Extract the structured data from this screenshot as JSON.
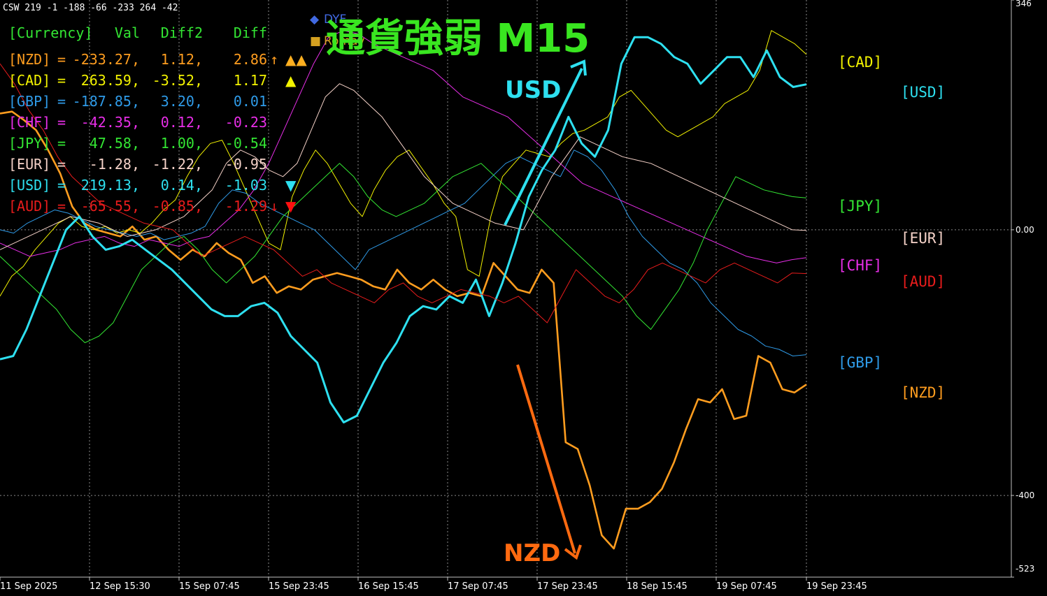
{
  "indicator_header": "CSW 219 -1 -188 -66 -233 264 -42",
  "table": {
    "header": [
      "[Currency]",
      "Val",
      "Diff2",
      "Diff"
    ],
    "rows": [
      {
        "currency": "[NZD]",
        "val": "-233.27,",
        "diff2": "1.12,",
        "diff": "2.86",
        "mark": "↑",
        "signal": "▲▲",
        "color": "#ff9d1f",
        "signal_color": "#ffb020"
      },
      {
        "currency": "[CAD]",
        "val": "263.59,",
        "diff2": "-3.52,",
        "diff": "1.17",
        "mark": "",
        "signal": "▲",
        "color": "#f2f200",
        "signal_color": "#f2f200"
      },
      {
        "currency": "[GBP]",
        "val": "-187.85,",
        "diff2": "3.20,",
        "diff": "0.01",
        "mark": "",
        "signal": "",
        "color": "#2f9be8",
        "signal_color": "#2f9be8"
      },
      {
        "currency": "[CHF]",
        "val": "-42.35,",
        "diff2": "0.12,",
        "diff": "-0.23",
        "mark": "",
        "signal": "",
        "color": "#e82ee8",
        "signal_color": "#e82ee8"
      },
      {
        "currency": "[JPY]",
        "val": "47.58,",
        "diff2": "1.00,",
        "diff": "-0.54",
        "mark": "",
        "signal": "",
        "color": "#33e633",
        "signal_color": "#33e633"
      },
      {
        "currency": "[EUR]",
        "val": "-1.28,",
        "diff2": "-1.22,",
        "diff": "-0.95",
        "mark": "",
        "signal": "",
        "color": "#f5d2c8",
        "signal_color": "#f5d2c8"
      },
      {
        "currency": "[USD]",
        "val": "219.13,",
        "diff2": "0.14,",
        "diff": "-1.03",
        "mark": "",
        "signal": "▼",
        "color": "#2ee0f0",
        "signal_color": "#2ee0f0"
      },
      {
        "currency": "[AUD]",
        "val": "-65.55,",
        "diff2": "-0.85,",
        "diff": "-1.29",
        "mark": "↓",
        "signal": "▼",
        "color": "#e81c1c",
        "signal_color": "#ff1010"
      }
    ]
  },
  "overlay_title": "通貨強弱 M15",
  "overlay_title_color": "#39e620",
  "legend_chips": {
    "dyf": "DYF",
    "romav": "Romav"
  },
  "annotations": [
    {
      "text": "USD",
      "color": "#2ee0f0"
    },
    {
      "text": "NZD",
      "color": "#ff6a10"
    }
  ],
  "right_labels": [
    {
      "text": "[CAD]",
      "value": 263.59,
      "color": "#f2f200",
      "column": 0
    },
    {
      "text": "[USD]",
      "value": 219.13,
      "color": "#2ee0f0",
      "column": 1
    },
    {
      "text": "[JPY]",
      "value": 47.58,
      "color": "#33e633",
      "column": 0
    },
    {
      "text": "[EUR]",
      "value": -1.28,
      "color": "#f5d2c8",
      "column": 1
    },
    {
      "text": "[CHF]",
      "value": -42.35,
      "color": "#e82ee8",
      "column": 0
    },
    {
      "text": "[AUD]",
      "value": -65.55,
      "color": "#e81c1c",
      "column": 1
    },
    {
      "text": "[GBP]",
      "value": -187.85,
      "color": "#2f9be8",
      "column": 0
    },
    {
      "text": "[NZD]",
      "value": -233.27,
      "color": "#ff9d1f",
      "column": 1
    }
  ],
  "chart_data": {
    "type": "line",
    "y_axis_labels": [
      "346",
      "0.00",
      "-400",
      "-523"
    ],
    "ylim": [
      -523,
      346
    ],
    "gridlines_y": [
      0,
      -400
    ],
    "x_tick_labels": [
      "11 Sep 2025",
      "12 Sep 15:30",
      "15 Sep 07:45",
      "15 Sep 23:45",
      "16 Sep 15:45",
      "17 Sep 07:45",
      "17 Sep 23:45",
      "18 Sep 15:45",
      "19 Sep 07:45",
      "19 Sep 23:45"
    ],
    "grid": true,
    "series": [
      {
        "name": "NZD",
        "color": "#ff9d1f",
        "width": 2.6,
        "y": [
          175,
          178,
          165,
          150,
          120,
          85,
          35,
          10,
          0,
          -5,
          -10,
          5,
          -15,
          -10,
          -30,
          -45,
          -30,
          -40,
          -20,
          -35,
          -45,
          -80,
          -70,
          -95,
          -85,
          -90,
          -75,
          -70,
          -65,
          -70,
          -75,
          -85,
          -90,
          -60,
          -80,
          -90,
          -75,
          -90,
          -100,
          -95,
          -100,
          -50,
          -70,
          -90,
          -95,
          -60,
          -80,
          -320,
          -330,
          -385,
          -460,
          -480,
          -420,
          -420,
          -410,
          -390,
          -350,
          -300,
          -255,
          -260,
          -240,
          -285,
          -280,
          -190,
          -200,
          -240,
          -245,
          -233
        ]
      },
      {
        "name": "CAD",
        "color": "#f2f200",
        "width": 1,
        "y": [
          -100,
          -70,
          -55,
          -30,
          -10,
          10,
          20,
          5,
          0,
          5,
          -5,
          0,
          -5,
          10,
          30,
          45,
          80,
          110,
          130,
          135,
          100,
          60,
          20,
          -20,
          -30,
          50,
          90,
          120,
          100,
          70,
          40,
          20,
          60,
          90,
          110,
          120,
          95,
          70,
          40,
          20,
          -60,
          -70,
          20,
          80,
          100,
          120,
          115,
          110,
          130,
          145,
          150,
          160,
          170,
          200,
          210,
          190,
          170,
          150,
          140,
          150,
          160,
          170,
          190,
          200,
          210,
          240,
          300,
          290,
          280,
          264
        ]
      },
      {
        "name": "GBP",
        "color": "#2f9be8",
        "width": 1,
        "y": [
          0,
          -5,
          10,
          20,
          30,
          25,
          15,
          5,
          0,
          -5,
          -10,
          -5,
          -15,
          -10,
          -5,
          5,
          40,
          60,
          55,
          40,
          30,
          20,
          10,
          0,
          -20,
          -40,
          -60,
          -30,
          -20,
          -10,
          0,
          10,
          20,
          30,
          40,
          60,
          80,
          100,
          110,
          100,
          90,
          80,
          120,
          110,
          90,
          60,
          20,
          -10,
          -30,
          -50,
          -60,
          -80,
          -110,
          -130,
          -150,
          -160,
          -175,
          -180,
          -190,
          -188
        ]
      },
      {
        "name": "CHF",
        "color": "#e82ee8",
        "width": 1,
        "y": [
          -20,
          -30,
          -40,
          -35,
          -30,
          -20,
          -15,
          -10,
          -20,
          -25,
          -15,
          -20,
          -25,
          -15,
          -10,
          10,
          30,
          60,
          100,
          150,
          200,
          250,
          290,
          300,
          295,
          280,
          270,
          260,
          250,
          240,
          220,
          200,
          190,
          180,
          170,
          150,
          130,
          110,
          90,
          70,
          60,
          50,
          40,
          30,
          20,
          10,
          0,
          -10,
          -20,
          -30,
          -40,
          -45,
          -50,
          -45,
          -42
        ]
      },
      {
        "name": "JPY",
        "color": "#33e633",
        "width": 1,
        "y": [
          -40,
          -60,
          -80,
          -100,
          -120,
          -150,
          -170,
          -160,
          -140,
          -100,
          -60,
          -40,
          -20,
          -10,
          -30,
          -60,
          -80,
          -60,
          -40,
          -10,
          20,
          40,
          60,
          80,
          100,
          80,
          50,
          30,
          20,
          30,
          40,
          60,
          80,
          90,
          100,
          80,
          60,
          40,
          20,
          0,
          -20,
          -40,
          -60,
          -80,
          -100,
          -130,
          -150,
          -120,
          -90,
          -50,
          0,
          40,
          80,
          70,
          60,
          55,
          50,
          48
        ]
      },
      {
        "name": "EUR",
        "color": "#f5d2c8",
        "width": 1,
        "y": [
          -30,
          -20,
          -10,
          0,
          10,
          20,
          15,
          10,
          0,
          -10,
          -5,
          0,
          10,
          20,
          40,
          60,
          100,
          120,
          110,
          90,
          80,
          100,
          150,
          200,
          220,
          210,
          190,
          170,
          140,
          110,
          80,
          60,
          40,
          30,
          20,
          10,
          5,
          0,
          40,
          80,
          110,
          140,
          130,
          120,
          110,
          105,
          100,
          90,
          80,
          70,
          60,
          50,
          40,
          30,
          20,
          10,
          0,
          -1
        ]
      },
      {
        "name": "USD",
        "color": "#2ee0f0",
        "width": 3,
        "y": [
          -195,
          -190,
          -150,
          -100,
          -50,
          0,
          20,
          -10,
          -30,
          -25,
          -15,
          -30,
          -45,
          -60,
          -80,
          -100,
          -120,
          -130,
          -130,
          -115,
          -110,
          -125,
          -160,
          -180,
          -200,
          -260,
          -290,
          -280,
          -240,
          -200,
          -170,
          -130,
          -115,
          -120,
          -100,
          -110,
          -75,
          -130,
          -80,
          -20,
          50,
          90,
          120,
          170,
          130,
          110,
          150,
          250,
          290,
          290,
          280,
          260,
          250,
          220,
          240,
          260,
          260,
          230,
          270,
          230,
          215,
          219
        ]
      },
      {
        "name": "AUD",
        "color": "#e81c1c",
        "width": 1,
        "y": [
          250,
          220,
          180,
          150,
          110,
          80,
          60,
          40,
          30,
          20,
          10,
          5,
          0,
          -20,
          -40,
          -30,
          -20,
          -10,
          -20,
          -30,
          -50,
          -70,
          -60,
          -80,
          -90,
          -100,
          -110,
          -90,
          -80,
          -100,
          -110,
          -100,
          -90,
          -95,
          -100,
          -110,
          -100,
          -120,
          -140,
          -100,
          -60,
          -80,
          -100,
          -110,
          -90,
          -60,
          -50,
          -60,
          -70,
          -80,
          -60,
          -50,
          -60,
          -70,
          -80,
          -65,
          -66
        ]
      }
    ]
  }
}
